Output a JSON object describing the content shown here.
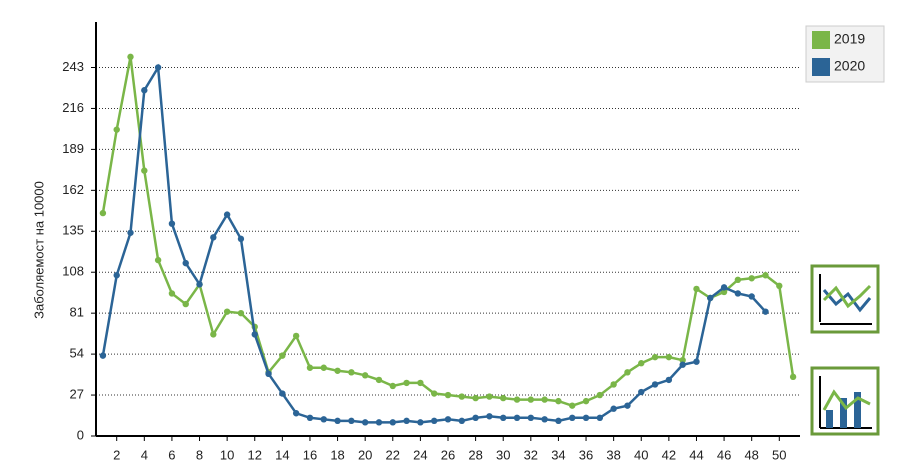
{
  "chart_data": {
    "type": "line",
    "y_label": "Заболяемост на 10000",
    "x": [
      1,
      2,
      3,
      4,
      5,
      6,
      7,
      8,
      9,
      10,
      11,
      12,
      13,
      14,
      15,
      16,
      17,
      18,
      19,
      20,
      21,
      22,
      23,
      24,
      25,
      26,
      27,
      28,
      29,
      30,
      31,
      32,
      33,
      34,
      35,
      36,
      37,
      38,
      39,
      40,
      41,
      42,
      43,
      44,
      45,
      46,
      47,
      48,
      49,
      50,
      51
    ],
    "series": [
      {
        "name": "2019",
        "color": "#7ab648",
        "values": [
          147,
          202,
          250,
          175,
          116,
          94,
          87,
          100,
          67,
          82,
          81,
          72,
          42,
          53,
          66,
          45,
          45,
          43,
          42,
          40,
          37,
          33,
          35,
          35,
          28,
          27,
          26,
          25,
          26,
          25,
          24,
          24,
          24,
          23,
          20,
          23,
          27,
          34,
          42,
          48,
          52,
          52,
          50,
          97,
          91,
          95,
          103,
          104,
          106,
          99,
          39
        ]
      },
      {
        "name": "2020",
        "color": "#2b6496",
        "values": [
          53,
          106,
          134,
          228,
          243,
          140,
          114,
          100,
          131,
          146,
          130,
          67,
          41,
          28,
          15,
          12,
          11,
          10,
          10,
          9,
          9,
          9,
          10,
          9,
          10,
          11,
          10,
          12,
          13,
          12,
          12,
          12,
          11,
          10,
          12,
          12,
          12,
          18,
          20,
          29,
          34,
          37,
          47,
          49,
          91,
          98,
          94,
          92,
          82,
          null,
          null
        ]
      }
    ],
    "xlim": [
      0.5,
      51.5
    ],
    "xticks": [
      2,
      4,
      6,
      8,
      10,
      12,
      14,
      16,
      18,
      20,
      22,
      24,
      26,
      28,
      30,
      32,
      34,
      36,
      38,
      40,
      42,
      44,
      46,
      48,
      50
    ],
    "ylim": [
      0,
      273
    ],
    "yticks": [
      0,
      27,
      54,
      81,
      108,
      135,
      162,
      189,
      216,
      243
    ],
    "grid": true,
    "legend": "top-right"
  }
}
